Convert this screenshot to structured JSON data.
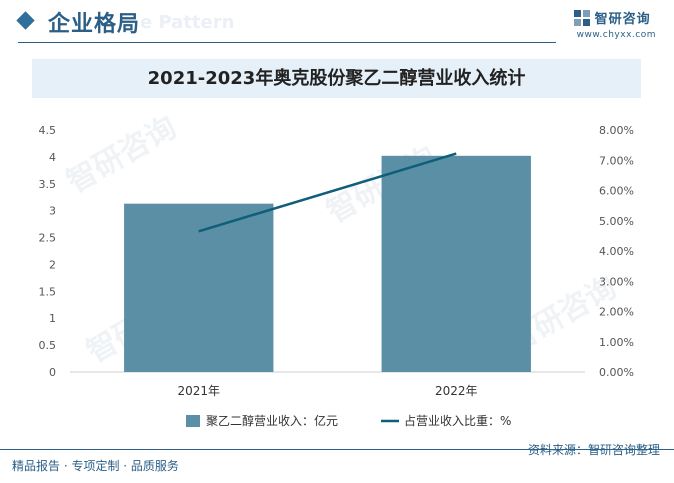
{
  "header": {
    "section_title": "企业格局",
    "pattern_text": "e Pattern",
    "brand_name": "智研咨询",
    "brand_url": "www.chyxx.com"
  },
  "footer": {
    "left_text": "精品报告 · 专项定制 · 品质服务",
    "source": "资料来源：智研咨询整理"
  },
  "watermark_text": "智研咨询",
  "colors": {
    "bar": "#5b8fa6",
    "line": "#0f5e7a",
    "accent": "#2b5f87",
    "title_band": "#e6f0f8"
  },
  "chart_data": {
    "type": "bar+line",
    "title": "2021-2023年奥克股份聚乙二醇营业收入统计",
    "categories": [
      "2021年",
      "2022年"
    ],
    "series": [
      {
        "name": "聚乙二醇营业收入：亿元",
        "type": "bar",
        "axis": "left",
        "values": [
          3.13,
          4.02
        ]
      },
      {
        "name": "占营业收入比重：%",
        "type": "line",
        "axis": "right",
        "values": [
          4.65,
          7.22
        ]
      }
    ],
    "left_axis": {
      "ylim": [
        0,
        4.5
      ],
      "ticks": [
        "0",
        "0.5",
        "1",
        "1.5",
        "2",
        "2.5",
        "3",
        "3.5",
        "4",
        "4.5"
      ]
    },
    "right_axis": {
      "ylim": [
        0,
        8
      ],
      "ticks": [
        "0.00%",
        "1.00%",
        "2.00%",
        "3.00%",
        "4.00%",
        "5.00%",
        "6.00%",
        "7.00%",
        "8.00%"
      ]
    },
    "legend_position": "bottom",
    "grid": false
  }
}
